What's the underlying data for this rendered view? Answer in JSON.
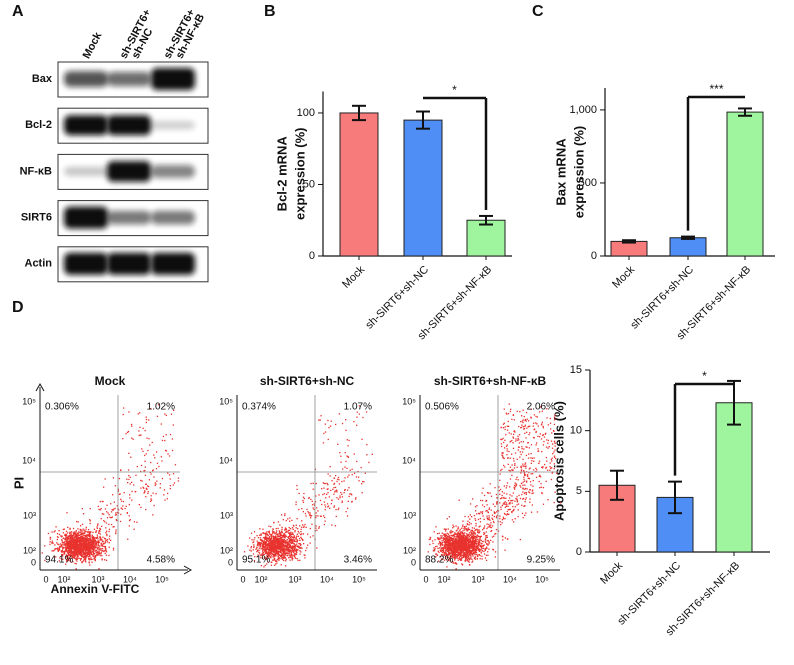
{
  "panel_labels": [
    "A",
    "B",
    "C",
    "D"
  ],
  "western_blot": {
    "lanes": [
      [
        "Mock"
      ],
      [
        "sh-SIRT6+",
        "sh-NC"
      ],
      [
        "sh-SIRT6+",
        "sh-NF-κB"
      ]
    ],
    "rows": [
      "Bax",
      "Bcl-2",
      "NF-κB",
      "SIRT6",
      "Actin"
    ]
  },
  "flow_cytometry": {
    "xlabel": "Annexin V-FITC",
    "ylabel": "PI",
    "ticks": [
      "0",
      "10²",
      "10³",
      "10⁴",
      "10⁵"
    ],
    "plots": [
      {
        "title": "Mock",
        "quadrants": [
          "0.306%",
          "1.02%",
          "94.1%",
          "4.58%"
        ]
      },
      {
        "title": "sh-SIRT6+sh-NC",
        "quadrants": [
          "0.374%",
          "1.07%",
          "95.1%",
          "3.46%"
        ]
      },
      {
        "title": "sh-SIRT6+sh-NF-κB",
        "quadrants": [
          "0.506%",
          "2.06%",
          "88.2%",
          "9.25%"
        ]
      }
    ]
  },
  "chart_data": [
    {
      "type": "bar",
      "ylabel": [
        "Bcl-2 mRNA",
        "expression (%)"
      ],
      "categories": [
        "Mock",
        "sh-SIRT6+sh-NC",
        "sh-SIRT6+sh-NF-κB"
      ],
      "values": [
        100,
        95,
        25
      ],
      "errors": [
        5,
        6,
        3
      ],
      "colors": [
        "#f77b7b",
        "#4f8ff5",
        "#9ef59e"
      ],
      "ylim": [
        0,
        115
      ],
      "yticks": [
        0,
        50,
        100
      ],
      "significance": {
        "between": [
          1,
          2
        ],
        "label": "*"
      }
    },
    {
      "type": "bar",
      "ylabel": [
        "Bax mRNA",
        "expression (%)"
      ],
      "categories": [
        "Mock",
        "sh-SIRT6+sh-NC",
        "sh-SIRT6+sh-NF-κB"
      ],
      "values": [
        100,
        125,
        985
      ],
      "errors": [
        8,
        8,
        25
      ],
      "colors": [
        "#f77b7b",
        "#4f8ff5",
        "#9ef59e"
      ],
      "ylim": [
        0,
        1150
      ],
      "yticks": [
        0,
        500,
        {
          "value": 1000,
          "label": "1,000"
        }
      ],
      "significance": {
        "between": [
          1,
          2
        ],
        "label": "***"
      }
    },
    {
      "type": "bar",
      "ylabel": [
        "Apoptosis cells (%)"
      ],
      "categories": [
        "Mock",
        "sh-SIRT6+sh-NC",
        "sh-SIRT6+sh-NF-κB"
      ],
      "values": [
        5.5,
        4.5,
        12.3
      ],
      "errors": [
        1.2,
        1.3,
        1.8
      ],
      "colors": [
        "#f77b7b",
        "#4f8ff5",
        "#9ef59e"
      ],
      "ylim": [
        0,
        15
      ],
      "yticks": [
        0,
        5,
        10,
        15
      ],
      "significance": {
        "between": [
          1,
          2
        ],
        "label": "*"
      }
    }
  ]
}
